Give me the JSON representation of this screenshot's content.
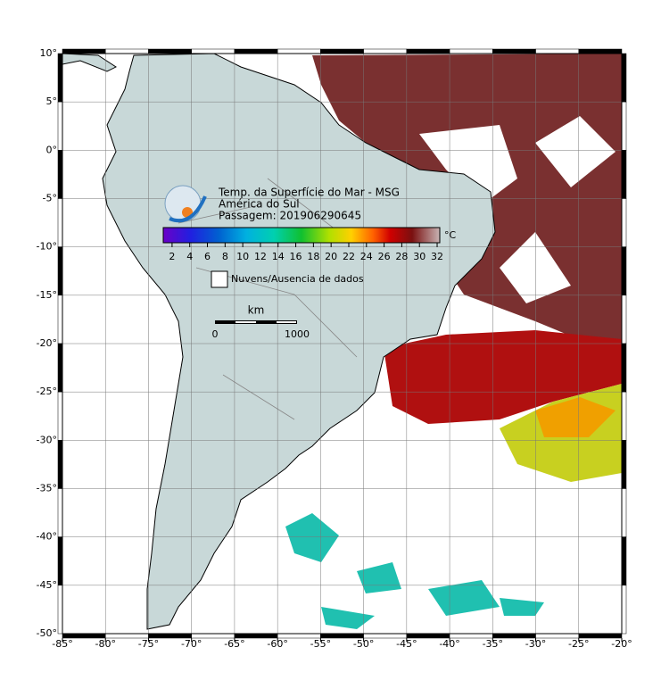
{
  "map": {
    "title_lines": [
      "Temp. da Superfície do Mar - MSG",
      "América do Sul",
      "Passagem: 201906290645"
    ],
    "lonlim": [
      -85,
      -20
    ],
    "latlim": [
      -50,
      10
    ],
    "xticks": [
      {
        "value": -85,
        "label": "-85°"
      },
      {
        "value": -80,
        "label": "-80°"
      },
      {
        "value": -75,
        "label": "-75°"
      },
      {
        "value": -70,
        "label": "-70°"
      },
      {
        "value": -65,
        "label": "-65°"
      },
      {
        "value": -60,
        "label": "-60°"
      },
      {
        "value": -55,
        "label": "-55°"
      },
      {
        "value": -50,
        "label": "-50°"
      },
      {
        "value": -45,
        "label": "-45°"
      },
      {
        "value": -40,
        "label": "-40°"
      },
      {
        "value": -35,
        "label": "-35°"
      },
      {
        "value": -30,
        "label": "-30°"
      },
      {
        "value": -25,
        "label": "-25°"
      },
      {
        "value": -20,
        "label": "-20°"
      }
    ],
    "yticks": [
      {
        "value": 10,
        "label": "10°"
      },
      {
        "value": 5,
        "label": "5°"
      },
      {
        "value": 0,
        "label": "0°"
      },
      {
        "value": -5,
        "label": "-5°"
      },
      {
        "value": -10,
        "label": "-10°"
      },
      {
        "value": -15,
        "label": "-15°"
      },
      {
        "value": -20,
        "label": "-20°"
      },
      {
        "value": -25,
        "label": "-25°"
      },
      {
        "value": -30,
        "label": "-30°"
      },
      {
        "value": -35,
        "label": "-35°"
      },
      {
        "value": -40,
        "label": "-40°"
      },
      {
        "value": -45,
        "label": "-45°"
      },
      {
        "value": -50,
        "label": "-50°"
      }
    ],
    "grid": true,
    "colorbar": {
      "lim": [
        1,
        32.3
      ],
      "ticks": [
        2,
        4,
        6,
        8,
        10,
        12,
        14,
        16,
        18,
        20,
        22,
        24,
        26,
        28,
        30,
        32
      ],
      "unit": "°C"
    },
    "legend": "Nuvens/Ausencia de dados",
    "scale": {
      "unit": "km",
      "labels": [
        0,
        1000
      ]
    }
  }
}
